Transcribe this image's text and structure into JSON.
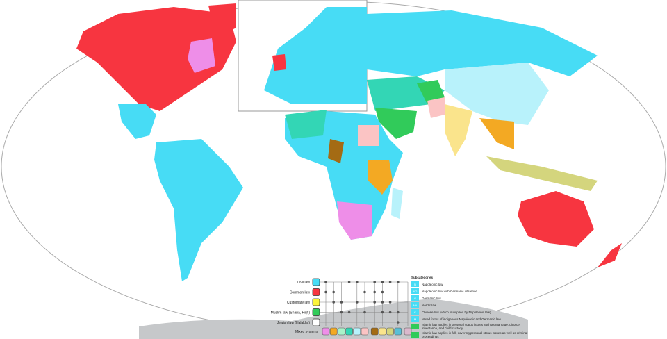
{
  "legend": {
    "systems": [
      {
        "label": "Civil law",
        "color": "#47dcf5"
      },
      {
        "label": "Common law",
        "color": "#f73540"
      },
      {
        "label": "Customary law",
        "color": "#fcf43a"
      },
      {
        "label": "Muslim law (Sharia, Fiqh)",
        "color": "#31cb5a"
      },
      {
        "label": "Jewish law (Halakha)",
        "color": "#ffffff"
      }
    ],
    "mixed_label": "Mixed systems",
    "mixed_colors": [
      "#ee8ee8",
      "#f3a923",
      "#a9f2c9",
      "#33d6b5",
      "#b8f2fb",
      "#fbc4c4",
      "#a46b14",
      "#fae48c",
      "#d4d57d",
      "#59bfd6",
      "#dab8cc"
    ],
    "matrix": [
      [
        1,
        0,
        0,
        1,
        1,
        0,
        1,
        1,
        1,
        1,
        0
      ],
      [
        1,
        1,
        0,
        0,
        0,
        1,
        1,
        1,
        0,
        0,
        0
      ],
      [
        0,
        1,
        1,
        0,
        1,
        0,
        1,
        1,
        1,
        0,
        0
      ],
      [
        0,
        0,
        1,
        1,
        0,
        1,
        0,
        1,
        1,
        1,
        0
      ],
      [
        0,
        0,
        0,
        0,
        0,
        0,
        0,
        0,
        0,
        1,
        0
      ]
    ],
    "subcategories_title": "Subcategories",
    "subcategories": [
      {
        "code": "N",
        "label": "Napoleonic law",
        "color": "#47dcf5"
      },
      {
        "code": "NG",
        "label": "Napoleonic law with Germanic influence",
        "color": "#47dcf5"
      },
      {
        "code": "G",
        "label": "Germanic law",
        "color": "#47dcf5"
      },
      {
        "code": "NA",
        "label": "Nordic law",
        "color": "#47dcf5"
      },
      {
        "code": "C",
        "label": "Chinese law (which is inspired by Napoleonic law)",
        "color": "#47dcf5"
      },
      {
        "code": "M",
        "label": "Mixed forms of indigenous Napoleonic and Germanic law",
        "color": "#47dcf5"
      },
      {
        "code": "",
        "label": "Islamic law applies in personal status issues such as marriage, divorce, inheritance, and child custody",
        "color": "#31cb5a"
      },
      {
        "code": "",
        "label": "Islamic law applies in full, covering personal status issues as well as criminal proceedings",
        "color": "#31cb5a"
      }
    ]
  }
}
